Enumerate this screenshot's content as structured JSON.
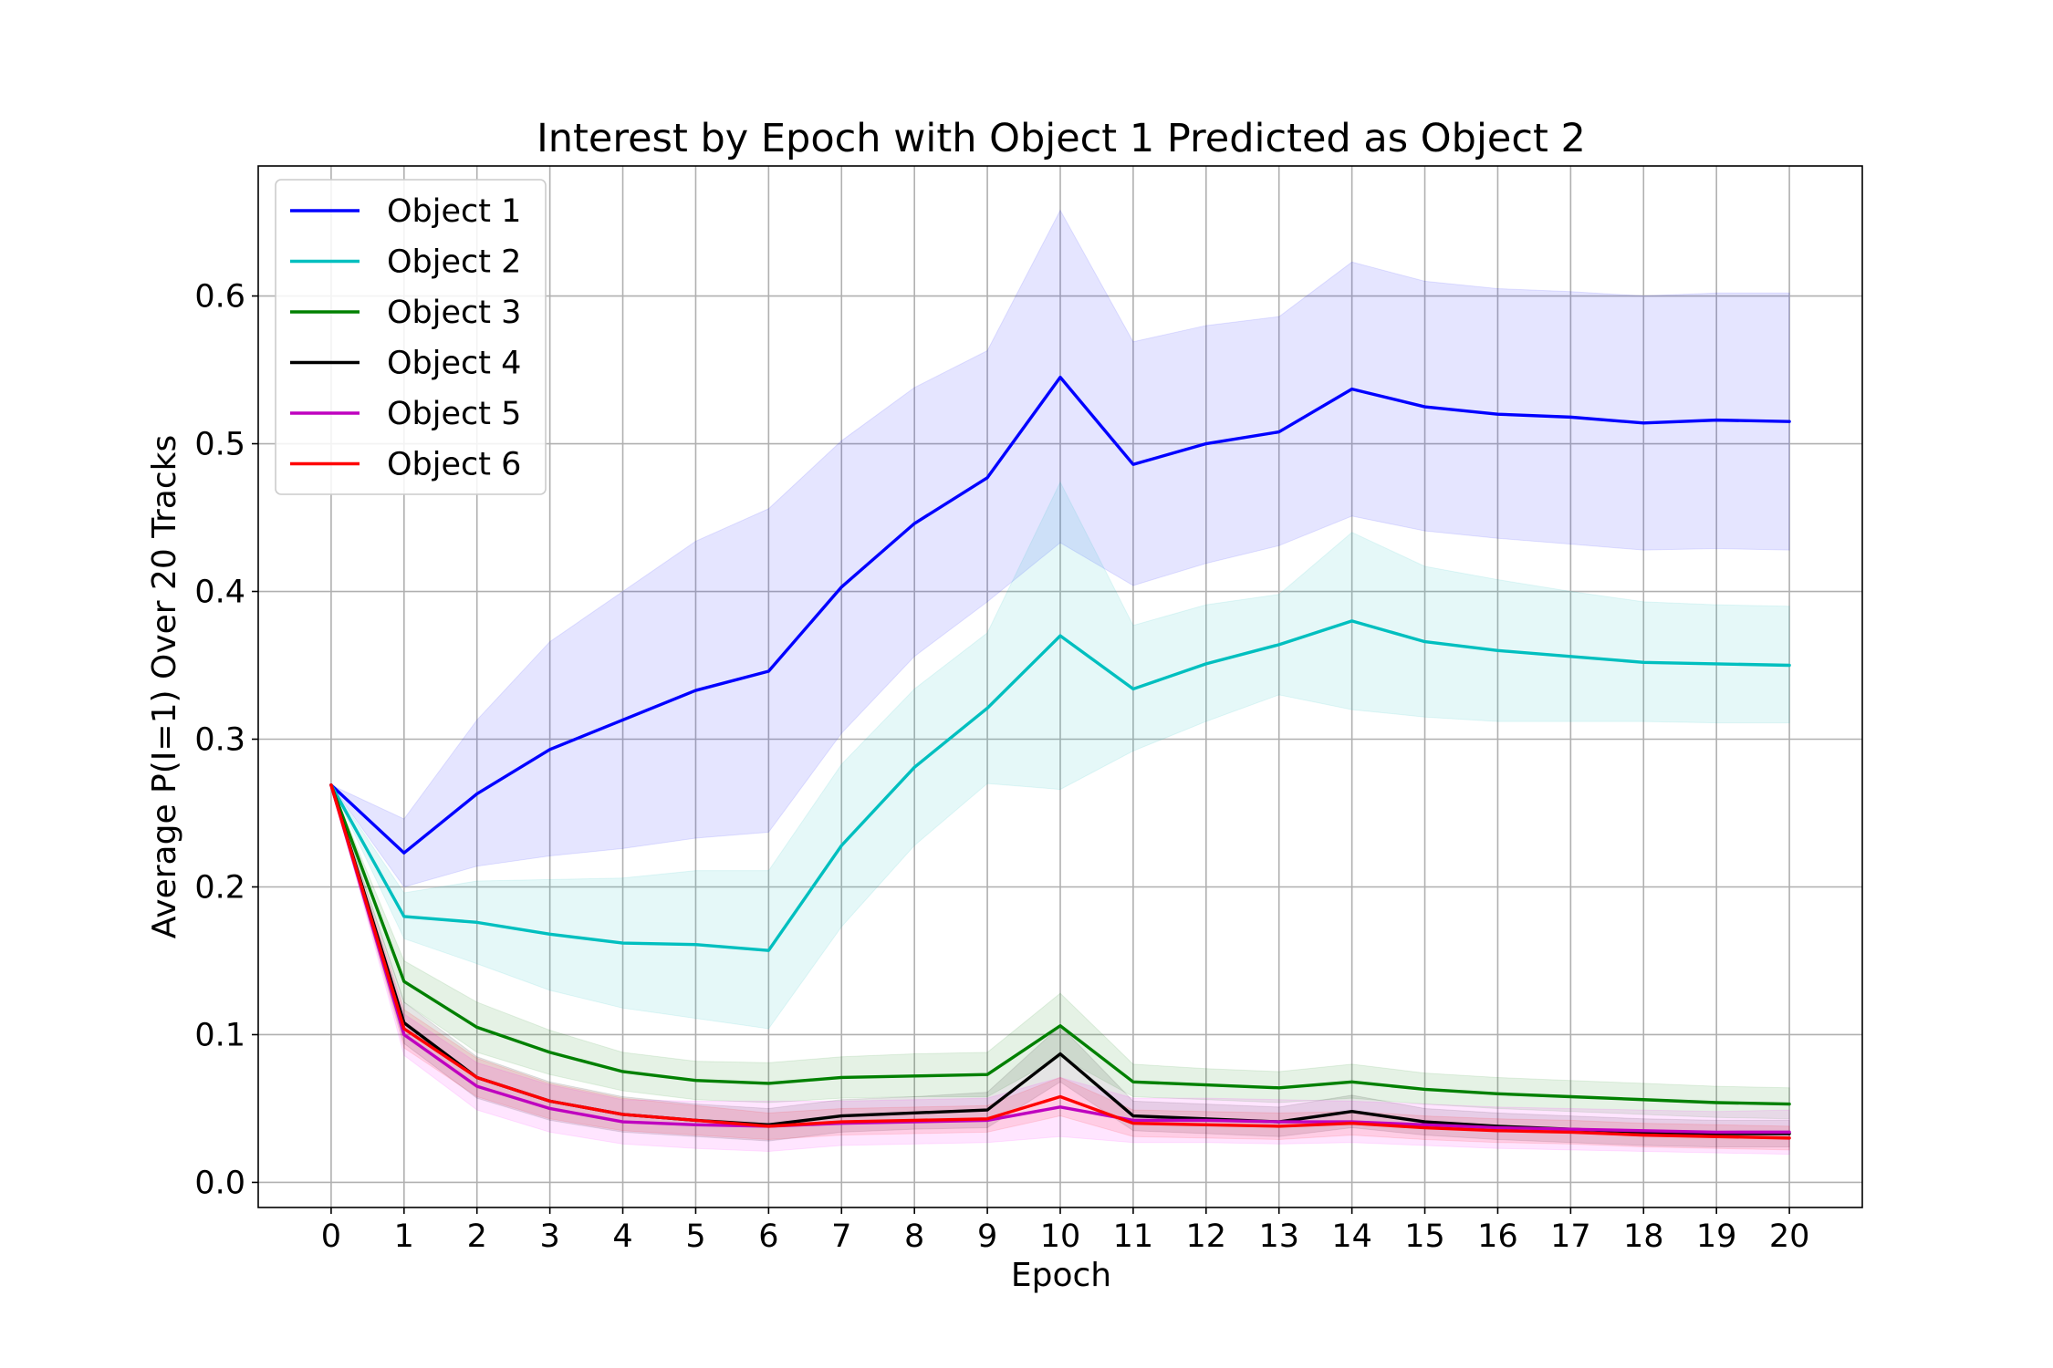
{
  "chart_data": {
    "type": "line",
    "title": "Interest by Epoch with Object 1 Predicted as Object 2",
    "xlabel": "Epoch",
    "ylabel": "Average P(I=1) Over 20 Tracks",
    "x": [
      0,
      1,
      2,
      3,
      4,
      5,
      6,
      7,
      8,
      9,
      10,
      11,
      12,
      13,
      14,
      15,
      16,
      17,
      18,
      19,
      20
    ],
    "xlim": [
      -1,
      21
    ],
    "ylim": [
      -0.017,
      0.688
    ],
    "yticks": [
      0.0,
      0.1,
      0.2,
      0.3,
      0.4,
      0.5,
      0.6
    ],
    "ytick_labels": [
      "0.0",
      "0.1",
      "0.2",
      "0.3",
      "0.4",
      "0.5",
      "0.6"
    ],
    "grid": true,
    "legend_position": "upper-left",
    "series": [
      {
        "name": "Object 1",
        "color": "#0000ff",
        "band_color": "#0000ff",
        "values": [
          0.269,
          0.223,
          0.263,
          0.293,
          0.313,
          0.333,
          0.346,
          0.403,
          0.446,
          0.477,
          0.545,
          0.486,
          0.5,
          0.508,
          0.537,
          0.525,
          0.52,
          0.518,
          0.514,
          0.516,
          0.515
        ],
        "lower": [
          0.269,
          0.2,
          0.214,
          0.221,
          0.226,
          0.233,
          0.237,
          0.304,
          0.356,
          0.393,
          0.433,
          0.404,
          0.419,
          0.431,
          0.451,
          0.441,
          0.436,
          0.432,
          0.428,
          0.429,
          0.428
        ],
        "upper": [
          0.269,
          0.246,
          0.313,
          0.366,
          0.4,
          0.434,
          0.456,
          0.502,
          0.538,
          0.563,
          0.658,
          0.569,
          0.58,
          0.586,
          0.623,
          0.61,
          0.605,
          0.603,
          0.6,
          0.602,
          0.602
        ]
      },
      {
        "name": "Object 2",
        "color": "#00bfbf",
        "band_color": "#00bfbf",
        "values": [
          0.269,
          0.18,
          0.176,
          0.168,
          0.162,
          0.161,
          0.157,
          0.228,
          0.281,
          0.321,
          0.37,
          0.334,
          0.351,
          0.364,
          0.38,
          0.366,
          0.36,
          0.356,
          0.352,
          0.351,
          0.35
        ],
        "lower": [
          0.269,
          0.165,
          0.148,
          0.13,
          0.118,
          0.111,
          0.104,
          0.173,
          0.228,
          0.27,
          0.266,
          0.292,
          0.312,
          0.33,
          0.32,
          0.315,
          0.312,
          0.312,
          0.312,
          0.311,
          0.311
        ],
        "upper": [
          0.269,
          0.196,
          0.204,
          0.205,
          0.206,
          0.211,
          0.211,
          0.283,
          0.334,
          0.372,
          0.474,
          0.377,
          0.391,
          0.398,
          0.44,
          0.417,
          0.408,
          0.4,
          0.393,
          0.391,
          0.39
        ]
      },
      {
        "name": "Object 3",
        "color": "#008000",
        "band_color": "#008000",
        "values": [
          0.269,
          0.136,
          0.105,
          0.088,
          0.075,
          0.069,
          0.067,
          0.071,
          0.072,
          0.073,
          0.106,
          0.068,
          0.066,
          0.064,
          0.068,
          0.063,
          0.06,
          0.058,
          0.056,
          0.054,
          0.053
        ],
        "lower": [
          0.269,
          0.122,
          0.088,
          0.073,
          0.062,
          0.056,
          0.054,
          0.057,
          0.058,
          0.058,
          0.085,
          0.058,
          0.056,
          0.054,
          0.057,
          0.053,
          0.05,
          0.048,
          0.046,
          0.044,
          0.043
        ],
        "upper": [
          0.269,
          0.15,
          0.122,
          0.103,
          0.088,
          0.082,
          0.081,
          0.085,
          0.087,
          0.088,
          0.128,
          0.08,
          0.077,
          0.075,
          0.08,
          0.074,
          0.071,
          0.069,
          0.067,
          0.065,
          0.064
        ]
      },
      {
        "name": "Object 4",
        "color": "#000000",
        "band_color": "#000000",
        "values": [
          0.269,
          0.108,
          0.071,
          0.055,
          0.046,
          0.042,
          0.039,
          0.045,
          0.047,
          0.049,
          0.087,
          0.045,
          0.043,
          0.041,
          0.048,
          0.041,
          0.038,
          0.036,
          0.034,
          0.033,
          0.033
        ],
        "lower": [
          0.269,
          0.094,
          0.057,
          0.042,
          0.034,
          0.031,
          0.028,
          0.034,
          0.036,
          0.037,
          0.068,
          0.035,
          0.033,
          0.031,
          0.037,
          0.032,
          0.029,
          0.027,
          0.025,
          0.024,
          0.024
        ],
        "upper": [
          0.269,
          0.122,
          0.085,
          0.068,
          0.058,
          0.053,
          0.05,
          0.056,
          0.058,
          0.061,
          0.106,
          0.055,
          0.053,
          0.051,
          0.059,
          0.05,
          0.047,
          0.045,
          0.043,
          0.042,
          0.042
        ]
      },
      {
        "name": "Object 5",
        "color": "#bf00bf",
        "band_color": "#ff00ff",
        "values": [
          0.269,
          0.1,
          0.065,
          0.05,
          0.041,
          0.039,
          0.038,
          0.04,
          0.041,
          0.042,
          0.051,
          0.042,
          0.042,
          0.041,
          0.041,
          0.039,
          0.037,
          0.036,
          0.035,
          0.034,
          0.034
        ],
        "lower": [
          0.269,
          0.086,
          0.049,
          0.034,
          0.026,
          0.023,
          0.021,
          0.025,
          0.026,
          0.027,
          0.031,
          0.027,
          0.027,
          0.026,
          0.027,
          0.025,
          0.023,
          0.022,
          0.021,
          0.02,
          0.019
        ],
        "upper": [
          0.269,
          0.114,
          0.081,
          0.066,
          0.056,
          0.055,
          0.055,
          0.055,
          0.056,
          0.057,
          0.071,
          0.057,
          0.057,
          0.056,
          0.055,
          0.053,
          0.051,
          0.05,
          0.049,
          0.048,
          0.049
        ]
      },
      {
        "name": "Object 6",
        "color": "#ff0000",
        "band_color": "#ff0000",
        "values": [
          0.269,
          0.104,
          0.071,
          0.055,
          0.046,
          0.042,
          0.038,
          0.041,
          0.042,
          0.043,
          0.058,
          0.04,
          0.039,
          0.038,
          0.04,
          0.037,
          0.035,
          0.034,
          0.032,
          0.031,
          0.03
        ],
        "lower": [
          0.269,
          0.091,
          0.058,
          0.043,
          0.035,
          0.032,
          0.029,
          0.032,
          0.033,
          0.034,
          0.045,
          0.031,
          0.03,
          0.029,
          0.032,
          0.029,
          0.027,
          0.026,
          0.024,
          0.023,
          0.022
        ],
        "upper": [
          0.269,
          0.117,
          0.084,
          0.067,
          0.057,
          0.052,
          0.047,
          0.05,
          0.051,
          0.052,
          0.071,
          0.049,
          0.048,
          0.047,
          0.048,
          0.045,
          0.043,
          0.042,
          0.04,
          0.039,
          0.038
        ]
      }
    ]
  }
}
